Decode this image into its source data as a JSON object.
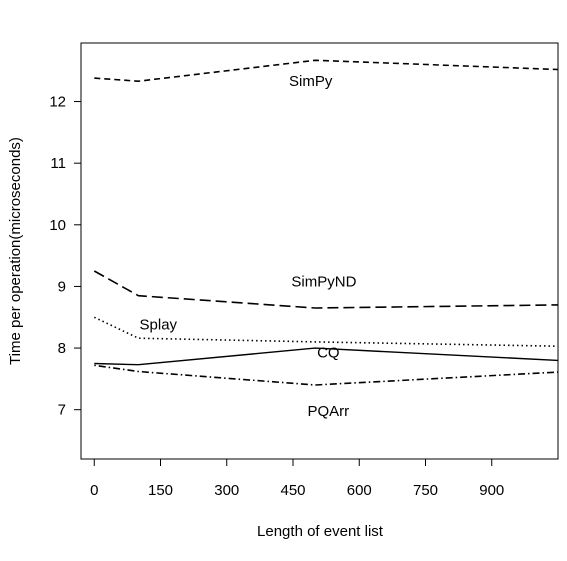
{
  "chart_data": {
    "type": "line",
    "title": "",
    "xlabel": "Length of event list",
    "ylabel": "Time per operation(microseconds)",
    "xlim": [
      -30,
      1050
    ],
    "ylim": [
      6.2,
      12.95
    ],
    "xticks": [
      0,
      150,
      300,
      450,
      600,
      750,
      900
    ],
    "yticks": [
      7,
      8,
      9,
      10,
      11,
      12
    ],
    "grid": false,
    "legend": "none",
    "series": [
      {
        "name": "SimPy",
        "line_style": "short-dash",
        "x": [
          0,
          100,
          500,
          1050
        ],
        "y": [
          12.38,
          12.33,
          12.67,
          12.52
        ],
        "label_at": [
          490,
          12.33
        ]
      },
      {
        "name": "SimPyND",
        "line_style": "long-dash",
        "x": [
          0,
          100,
          500,
          1050
        ],
        "y": [
          9.25,
          8.85,
          8.65,
          8.7
        ],
        "label_at": [
          520,
          9.08
        ]
      },
      {
        "name": "Splay",
        "line_style": "dotted",
        "x": [
          0,
          100,
          500,
          1050
        ],
        "y": [
          8.5,
          8.16,
          8.1,
          8.03
        ],
        "label_at": [
          145,
          8.38
        ]
      },
      {
        "name": "CQ",
        "line_style": "solid",
        "x": [
          0,
          100,
          500,
          1050
        ],
        "y": [
          7.75,
          7.73,
          8.0,
          7.8
        ],
        "label_at": [
          530,
          7.93
        ]
      },
      {
        "name": "PQArr",
        "line_style": "dot-dash",
        "x": [
          0,
          100,
          500,
          1050
        ],
        "y": [
          7.72,
          7.62,
          7.4,
          7.61
        ],
        "label_at": [
          530,
          6.98
        ]
      }
    ]
  }
}
